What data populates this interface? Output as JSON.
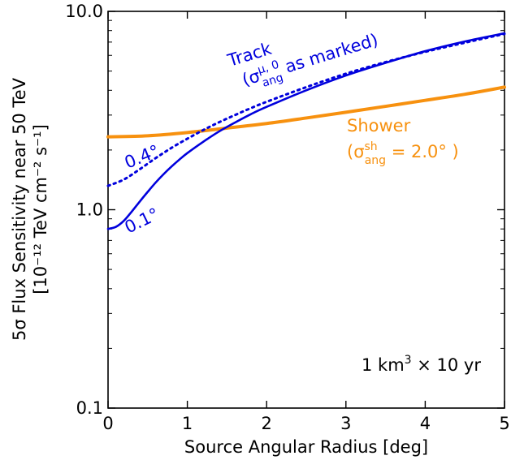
{
  "chart_data": {
    "type": "line",
    "xlabel": "Source Angular Radius [deg]",
    "ylabel_line1": "5σ Flux Sensitivity near 50 TeV",
    "ylabel_line2": "[10⁻¹² TeV cm⁻² s⁻¹]",
    "xlim": [
      0,
      5
    ],
    "ylim": [
      0.1,
      10.0
    ],
    "yscale": "log",
    "grid": false,
    "x_ticks": [
      {
        "value": 0,
        "label": "0"
      },
      {
        "value": 1,
        "label": "1"
      },
      {
        "value": 2,
        "label": "2"
      },
      {
        "value": 3,
        "label": "3"
      },
      {
        "value": 4,
        "label": "4"
      },
      {
        "value": 5,
        "label": "5"
      }
    ],
    "y_ticks": [
      {
        "value": 0.1,
        "label": "0.1"
      },
      {
        "value": 1.0,
        "label": "1.0"
      },
      {
        "value": 10.0,
        "label": "10.0"
      }
    ],
    "series": [
      {
        "name": "Track σ=0.1°",
        "color": "#0000dd",
        "style": "solid",
        "x": [
          0,
          0.1,
          0.2,
          0.3,
          0.4,
          0.5,
          0.6,
          0.7,
          0.8,
          0.9,
          1.0,
          1.2,
          1.4,
          1.6,
          1.8,
          2.0,
          2.5,
          3.0,
          3.5,
          4.0,
          4.5,
          5.0
        ],
        "y": [
          0.8,
          0.82,
          0.88,
          0.98,
          1.1,
          1.23,
          1.37,
          1.51,
          1.65,
          1.79,
          1.93,
          2.2,
          2.48,
          2.75,
          3.03,
          3.3,
          4.0,
          4.75,
          5.5,
          6.3,
          7.05,
          7.75
        ]
      },
      {
        "name": "Track σ=0.4°",
        "color": "#0000dd",
        "style": "dotted",
        "x": [
          0,
          0.2,
          0.4,
          0.6,
          0.8,
          1.0,
          1.2,
          1.4,
          1.6,
          1.8,
          2.0,
          2.5,
          3.0,
          3.5,
          4.0,
          4.5,
          5.0
        ],
        "y": [
          1.32,
          1.42,
          1.6,
          1.82,
          2.05,
          2.28,
          2.52,
          2.76,
          3.0,
          3.25,
          3.5,
          4.15,
          4.85,
          5.55,
          6.25,
          6.95,
          7.7
        ]
      },
      {
        "name": "Shower",
        "color": "#f7910f",
        "style": "solid",
        "x": [
          0,
          0.5,
          1.0,
          1.5,
          2.0,
          2.5,
          3.0,
          3.5,
          4.0,
          4.5,
          5.0
        ],
        "y": [
          2.33,
          2.36,
          2.45,
          2.58,
          2.72,
          2.9,
          3.1,
          3.32,
          3.56,
          3.82,
          4.15
        ]
      }
    ],
    "annotations": {
      "track_title": "Track",
      "track_sub_open": "(σ",
      "track_sub_sup": "μ, 0",
      "track_sub_sub": "ang",
      "track_sub_rest": " as marked)",
      "shower_title": "Shower",
      "shower_sub_open": "(σ",
      "shower_sub_sup": "sh",
      "shower_sub_sub": "ang",
      "shower_sub_rest": " = 2.0° )",
      "label_04": "0.4°",
      "label_01": "0.1°",
      "exposure_a": "1 km",
      "exposure_sup": "3",
      "exposure_b": " × 10 yr"
    }
  }
}
